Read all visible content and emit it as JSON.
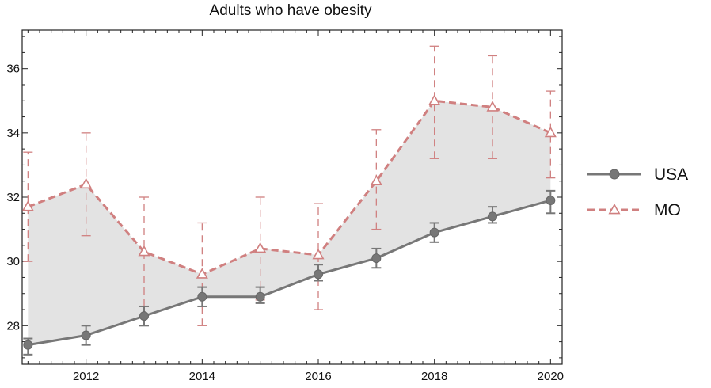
{
  "chart_data": {
    "type": "line",
    "title": "Adults who have obesity",
    "xlabel": "",
    "ylabel": "",
    "x": [
      2011,
      2012,
      2013,
      2014,
      2015,
      2016,
      2017,
      2018,
      2019,
      2020
    ],
    "xlim": [
      2010.9,
      2020.2
    ],
    "ylim": [
      26.8,
      37.2
    ],
    "x_ticks": [
      2012,
      2014,
      2016,
      2018,
      2020
    ],
    "y_ticks": [
      28,
      30,
      32,
      34,
      36
    ],
    "grid": false,
    "legend_position": "right",
    "fill_between_series": true,
    "fill_color": "#e3e3e3",
    "series": [
      {
        "name": "USA",
        "color": "#777777",
        "line_style": "solid",
        "marker": "filled-circle",
        "values": [
          27.4,
          27.7,
          28.3,
          28.9,
          28.9,
          29.6,
          30.1,
          30.9,
          31.4,
          31.9
        ],
        "err_low": [
          27.1,
          27.4,
          28.0,
          28.6,
          28.7,
          29.4,
          29.8,
          30.6,
          31.2,
          31.5
        ],
        "err_high": [
          27.6,
          28.0,
          28.6,
          29.2,
          29.2,
          29.9,
          30.4,
          31.2,
          31.7,
          32.2
        ]
      },
      {
        "name": "MO",
        "color": "#d08080",
        "line_style": "dashed",
        "marker": "open-triangle",
        "values": [
          31.7,
          32.4,
          30.3,
          29.6,
          30.4,
          30.2,
          32.5,
          35.0,
          34.8,
          34.0
        ],
        "err_low": [
          30.0,
          30.8,
          28.6,
          28.0,
          28.8,
          28.5,
          31.0,
          33.2,
          33.2,
          32.6
        ],
        "err_high": [
          33.4,
          34.0,
          32.0,
          31.2,
          32.0,
          31.8,
          34.1,
          36.7,
          36.4,
          35.3
        ]
      }
    ]
  }
}
